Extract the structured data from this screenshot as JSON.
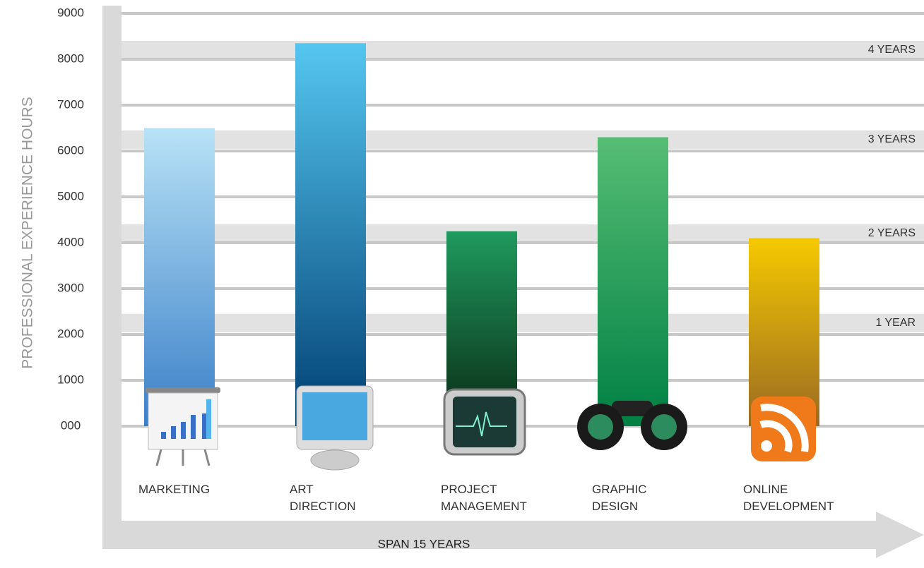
{
  "chart_data": {
    "type": "bar",
    "y_label": "PROFESSIONAL EXPERIENCE HOURS",
    "x_label": "SPAN 15 YEARS",
    "categories": [
      "MARKETING",
      "ART DIRECTION",
      "PROJECT MANAGEMENT",
      "GRAPHIC DESIGN",
      "ONLINE DEVELOPMENT"
    ],
    "values": [
      6500,
      8350,
      4250,
      6300,
      4100
    ],
    "gradients": [
      [
        "#b8e2f6",
        "#3a7fc8"
      ],
      [
        "#55c6f0",
        "#003f72"
      ],
      [
        "#1f9a5e",
        "#0a2a14"
      ],
      [
        "#56bd74",
        "#008044"
      ],
      [
        "#f5c900",
        "#9a6a22"
      ]
    ],
    "ylim": [
      0,
      9000
    ],
    "yticks": [
      {
        "value": 0,
        "label": "000"
      },
      1000,
      2000,
      3000,
      4000,
      5000,
      6000,
      7000,
      8000,
      9000
    ],
    "year_markers": [
      {
        "value": 2250,
        "label": "1 YEAR"
      },
      {
        "value": 4200,
        "label": "2 YEARS"
      },
      {
        "value": 6250,
        "label": "3 YEARS"
      },
      {
        "value": 8200,
        "label": "4 YEARS"
      }
    ],
    "grid": true
  }
}
